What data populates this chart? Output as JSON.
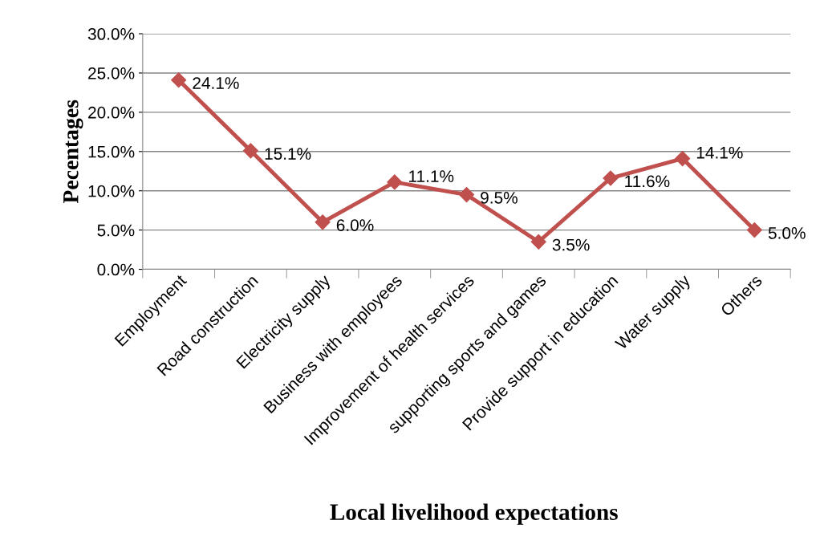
{
  "chart_data": {
    "type": "line",
    "xlabel": "Local livelihood expectations",
    "ylabel": "Pecentages",
    "categories": [
      "Employment",
      "Road construction",
      "Electricity supply",
      "Business with employees",
      "Improvement of health services",
      "supporting sports and games",
      "Provide support in education",
      "Water supply",
      "Others"
    ],
    "series": [
      {
        "color": "#c0504d",
        "values": [
          24.1,
          15.1,
          6.0,
          11.1,
          9.5,
          3.5,
          11.6,
          14.1,
          5.0
        ],
        "value_labels": [
          "24.1%",
          "15.1%",
          "6.0%",
          "11.1%",
          "9.5%",
          "3.5%",
          "11.6%",
          "14.1%",
          "5.0%"
        ]
      }
    ],
    "ylim": [
      0,
      30
    ],
    "yticks": [
      {
        "value": 0,
        "label": "0.0%"
      },
      {
        "value": 5,
        "label": "5.0%"
      },
      {
        "value": 10,
        "label": "10.0%"
      },
      {
        "value": 15,
        "label": "15.0%"
      },
      {
        "value": 20,
        "label": "20.0%"
      },
      {
        "value": 25,
        "label": "25.0%"
      },
      {
        "value": 30,
        "label": "30.0%"
      }
    ],
    "grid": "y",
    "marker": "diamond",
    "line_style": "solid"
  }
}
